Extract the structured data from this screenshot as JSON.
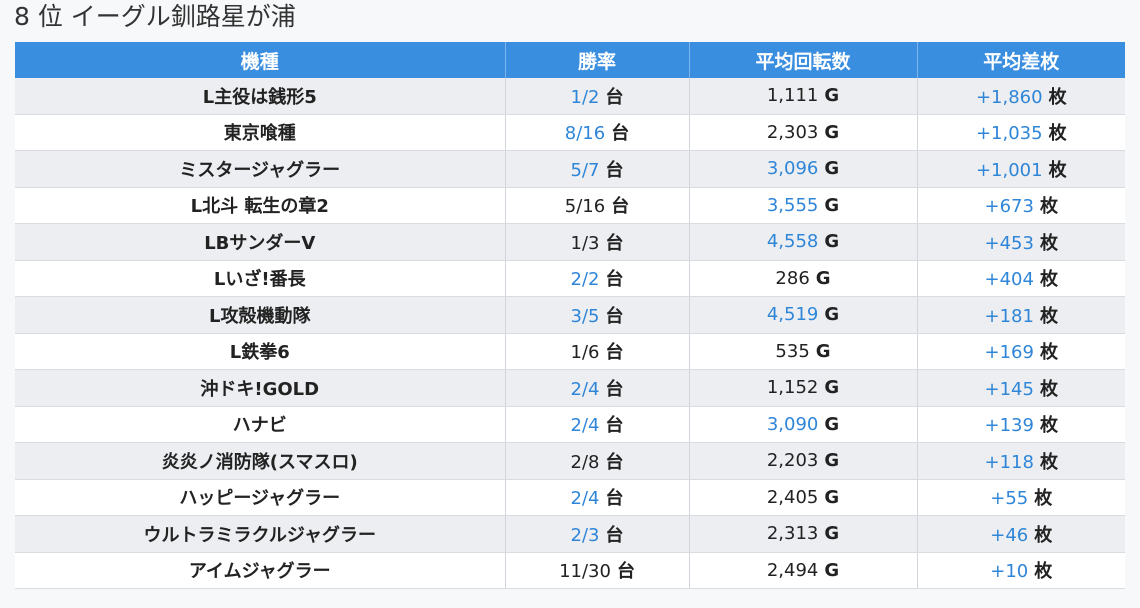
{
  "page": {
    "title": "8 位 イーグル釧路星が浦"
  },
  "table": {
    "headers": [
      "機種",
      "勝率",
      "平均回転数",
      "平均差枚"
    ],
    "rows": [
      {
        "machine": "L主役は銭形5",
        "win": "1/2",
        "win_hl": true,
        "spins": "1,111",
        "spins_hl": false,
        "diff": "+1,860",
        "diff_hl": true
      },
      {
        "machine": "東京喰種",
        "win": "8/16",
        "win_hl": true,
        "spins": "2,303",
        "spins_hl": false,
        "diff": "+1,035",
        "diff_hl": true
      },
      {
        "machine": "ミスタージャグラー",
        "win": "5/7",
        "win_hl": true,
        "spins": "3,096",
        "spins_hl": true,
        "diff": "+1,001",
        "diff_hl": true
      },
      {
        "machine": "L北斗 転生の章2",
        "win": "5/16",
        "win_hl": false,
        "spins": "3,555",
        "spins_hl": true,
        "diff": "+673",
        "diff_hl": true
      },
      {
        "machine": "LBサンダーV",
        "win": "1/3",
        "win_hl": false,
        "spins": "4,558",
        "spins_hl": true,
        "diff": "+453",
        "diff_hl": true
      },
      {
        "machine": "Lいざ!番長",
        "win": "2/2",
        "win_hl": true,
        "spins": "286",
        "spins_hl": false,
        "diff": "+404",
        "diff_hl": true
      },
      {
        "machine": "L攻殻機動隊",
        "win": "3/5",
        "win_hl": true,
        "spins": "4,519",
        "spins_hl": true,
        "diff": "+181",
        "diff_hl": true
      },
      {
        "machine": "L鉄拳6",
        "win": "1/6",
        "win_hl": false,
        "spins": "535",
        "spins_hl": false,
        "diff": "+169",
        "diff_hl": true
      },
      {
        "machine": "沖ドキ!GOLD",
        "win": "2/4",
        "win_hl": true,
        "spins": "1,152",
        "spins_hl": false,
        "diff": "+145",
        "diff_hl": true
      },
      {
        "machine": "ハナビ",
        "win": "2/4",
        "win_hl": true,
        "spins": "3,090",
        "spins_hl": true,
        "diff": "+139",
        "diff_hl": true
      },
      {
        "machine": "炎炎ノ消防隊(スマスロ)",
        "win": "2/8",
        "win_hl": false,
        "spins": "2,203",
        "spins_hl": false,
        "diff": "+118",
        "diff_hl": true
      },
      {
        "machine": "ハッピージャグラー",
        "win": "2/4",
        "win_hl": true,
        "spins": "2,405",
        "spins_hl": false,
        "diff": "+55",
        "diff_hl": true
      },
      {
        "machine": "ウルトラミラクルジャグラー",
        "win": "2/3",
        "win_hl": true,
        "spins": "2,313",
        "spins_hl": false,
        "diff": "+46",
        "diff_hl": true
      },
      {
        "machine": "アイムジャグラー",
        "win": "11/30",
        "win_hl": false,
        "spins": "2,494",
        "spins_hl": false,
        "diff": "+10",
        "diff_hl": true
      }
    ],
    "units": {
      "win": "台",
      "spins": "G",
      "diff": "枚"
    }
  },
  "colors": {
    "header_bg": "#3a8ee0",
    "highlight": "#2f86d8",
    "row_odd": "#eceef1",
    "row_even": "#ffffff"
  }
}
